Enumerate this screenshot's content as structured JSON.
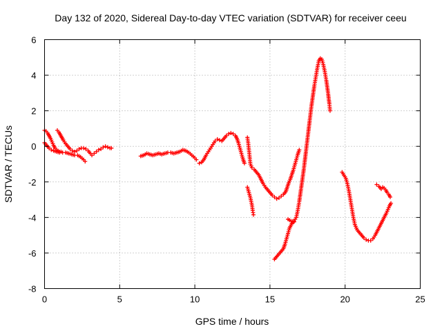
{
  "chart_data": {
    "type": "scatter",
    "title": "Day 132 of 2020, Sidereal Day-to-day VTEC variation (SDTVAR) for receiver ceeu",
    "xlabel": "GPS time / hours",
    "ylabel": "SDTVAR / TECUs",
    "xlim": [
      0,
      25
    ],
    "ylim": [
      -8,
      6
    ],
    "x_ticks": [
      0,
      5,
      10,
      15,
      20,
      25
    ],
    "y_ticks": [
      -8,
      -6,
      -4,
      -2,
      0,
      2,
      4,
      6
    ],
    "grid": true,
    "marker": "plus",
    "color": "#ff0000",
    "series": [
      {
        "points": [
          [
            0.0,
            0.2
          ],
          [
            0.15,
            0.05
          ],
          [
            0.3,
            -0.1
          ],
          [
            0.45,
            -0.2
          ],
          [
            0.6,
            -0.25
          ],
          [
            0.8,
            -0.3
          ],
          [
            1.0,
            -0.35
          ],
          [
            1.2,
            -0.35
          ],
          [
            1.4,
            -0.35
          ],
          [
            1.6,
            -0.4
          ],
          [
            1.8,
            -0.45
          ],
          [
            2.0,
            -0.5
          ],
          [
            2.2,
            -0.5
          ],
          [
            2.4,
            -0.6
          ],
          [
            2.6,
            -0.75
          ],
          [
            2.7,
            -0.85
          ]
        ]
      },
      {
        "points": [
          [
            0.0,
            0.9
          ],
          [
            0.1,
            0.85
          ],
          [
            0.2,
            0.75
          ],
          [
            0.3,
            0.6
          ],
          [
            0.4,
            0.45
          ],
          [
            0.5,
            0.25
          ],
          [
            0.6,
            0.05
          ],
          [
            0.7,
            -0.1
          ],
          [
            0.8,
            -0.2
          ],
          [
            0.9,
            -0.25
          ],
          [
            1.0,
            -0.3
          ],
          [
            1.1,
            -0.3
          ]
        ]
      },
      {
        "points": [
          [
            0.85,
            0.9
          ],
          [
            0.95,
            0.8
          ],
          [
            1.05,
            0.65
          ],
          [
            1.15,
            0.5
          ],
          [
            1.25,
            0.35
          ],
          [
            1.4,
            0.15
          ],
          [
            1.55,
            0.0
          ],
          [
            1.7,
            -0.15
          ],
          [
            1.85,
            -0.25
          ],
          [
            2.0,
            -0.3
          ],
          [
            2.15,
            -0.25
          ],
          [
            2.3,
            -0.15
          ],
          [
            2.45,
            -0.1
          ],
          [
            2.6,
            -0.1
          ],
          [
            2.75,
            -0.15
          ],
          [
            2.9,
            -0.25
          ],
          [
            3.05,
            -0.4
          ],
          [
            3.15,
            -0.5
          ],
          [
            3.3,
            -0.4
          ],
          [
            3.45,
            -0.3
          ],
          [
            3.6,
            -0.2
          ],
          [
            3.75,
            -0.15
          ],
          [
            3.9,
            -0.05
          ],
          [
            4.05,
            0.0
          ],
          [
            4.2,
            -0.05
          ],
          [
            4.35,
            -0.1
          ],
          [
            4.45,
            -0.1
          ]
        ]
      },
      {
        "points": [
          [
            6.4,
            -0.55
          ],
          [
            6.6,
            -0.5
          ],
          [
            6.8,
            -0.4
          ],
          [
            7.0,
            -0.45
          ],
          [
            7.2,
            -0.5
          ],
          [
            7.4,
            -0.45
          ],
          [
            7.6,
            -0.4
          ],
          [
            7.8,
            -0.45
          ],
          [
            8.0,
            -0.4
          ],
          [
            8.2,
            -0.35
          ],
          [
            8.4,
            -0.35
          ],
          [
            8.6,
            -0.4
          ],
          [
            8.8,
            -0.35
          ],
          [
            9.0,
            -0.3
          ],
          [
            9.2,
            -0.2
          ],
          [
            9.4,
            -0.25
          ],
          [
            9.6,
            -0.35
          ],
          [
            9.8,
            -0.5
          ],
          [
            10.0,
            -0.65
          ],
          [
            10.1,
            -0.75
          ]
        ]
      },
      {
        "points": [
          [
            10.3,
            -0.95
          ],
          [
            10.45,
            -0.9
          ],
          [
            10.6,
            -0.75
          ],
          [
            10.75,
            -0.5
          ],
          [
            10.9,
            -0.3
          ],
          [
            11.05,
            -0.1
          ],
          [
            11.2,
            0.1
          ],
          [
            11.35,
            0.3
          ],
          [
            11.5,
            0.4
          ],
          [
            11.65,
            0.35
          ],
          [
            11.8,
            0.3
          ],
          [
            11.95,
            0.45
          ],
          [
            12.1,
            0.6
          ],
          [
            12.25,
            0.7
          ],
          [
            12.4,
            0.75
          ],
          [
            12.55,
            0.7
          ],
          [
            12.7,
            0.6
          ],
          [
            12.8,
            0.45
          ],
          [
            12.9,
            0.2
          ],
          [
            13.0,
            -0.1
          ],
          [
            13.1,
            -0.4
          ],
          [
            13.2,
            -0.7
          ],
          [
            13.3,
            -0.95
          ]
        ]
      },
      {
        "points": [
          [
            13.5,
            0.5
          ],
          [
            13.55,
            0.2
          ],
          [
            13.6,
            -0.2
          ],
          [
            13.65,
            -0.6
          ],
          [
            13.7,
            -1.0
          ],
          [
            13.8,
            -1.2
          ],
          [
            13.95,
            -1.3
          ],
          [
            14.1,
            -1.45
          ],
          [
            14.25,
            -1.6
          ],
          [
            14.4,
            -1.85
          ],
          [
            14.55,
            -2.1
          ],
          [
            14.7,
            -2.3
          ],
          [
            14.85,
            -2.45
          ],
          [
            15.0,
            -2.6
          ],
          [
            15.15,
            -2.75
          ],
          [
            15.3,
            -2.85
          ],
          [
            15.45,
            -2.95
          ],
          [
            15.6,
            -2.9
          ],
          [
            15.75,
            -2.8
          ],
          [
            15.9,
            -2.7
          ],
          [
            16.05,
            -2.55
          ],
          [
            16.15,
            -2.3
          ],
          [
            16.25,
            -2.05
          ],
          [
            16.35,
            -1.85
          ],
          [
            16.45,
            -1.6
          ],
          [
            16.55,
            -1.35
          ],
          [
            16.65,
            -1.05
          ],
          [
            16.75,
            -0.75
          ],
          [
            16.85,
            -0.45
          ],
          [
            16.95,
            -0.2
          ]
        ]
      },
      {
        "points": [
          [
            13.5,
            -2.3
          ],
          [
            13.6,
            -2.6
          ],
          [
            13.7,
            -2.9
          ],
          [
            13.8,
            -3.3
          ],
          [
            13.85,
            -3.6
          ],
          [
            13.9,
            -3.85
          ]
        ]
      },
      {
        "points": [
          [
            15.3,
            -6.35
          ],
          [
            15.45,
            -6.2
          ],
          [
            15.6,
            -6.05
          ],
          [
            15.75,
            -5.9
          ],
          [
            15.9,
            -5.75
          ],
          [
            16.0,
            -5.5
          ],
          [
            16.1,
            -5.2
          ],
          [
            16.2,
            -4.9
          ],
          [
            16.3,
            -4.6
          ],
          [
            16.45,
            -4.35
          ],
          [
            16.6,
            -4.2
          ],
          [
            16.75,
            -4.0
          ],
          [
            16.85,
            -3.6
          ],
          [
            16.95,
            -3.1
          ],
          [
            17.05,
            -2.5
          ],
          [
            17.15,
            -1.9
          ],
          [
            17.25,
            -1.3
          ],
          [
            17.35,
            -0.6
          ],
          [
            17.45,
            0.1
          ],
          [
            17.55,
            0.8
          ],
          [
            17.65,
            1.5
          ],
          [
            17.75,
            2.2
          ],
          [
            17.85,
            2.8
          ],
          [
            17.95,
            3.4
          ],
          [
            18.05,
            3.9
          ],
          [
            18.15,
            4.4
          ],
          [
            18.25,
            4.8
          ],
          [
            18.35,
            4.95
          ],
          [
            18.45,
            4.9
          ],
          [
            18.55,
            4.6
          ],
          [
            18.65,
            4.2
          ],
          [
            18.75,
            3.7
          ],
          [
            18.85,
            3.1
          ],
          [
            18.95,
            2.4
          ],
          [
            19.0,
            2.0
          ]
        ]
      },
      {
        "points": [
          [
            16.2,
            -4.1
          ],
          [
            16.4,
            -4.2
          ],
          [
            16.6,
            -4.25
          ]
        ]
      },
      {
        "points": [
          [
            19.8,
            -1.45
          ],
          [
            20.05,
            -1.8
          ],
          [
            20.15,
            -2.1
          ],
          [
            20.25,
            -2.5
          ],
          [
            20.35,
            -3.0
          ],
          [
            20.45,
            -3.5
          ],
          [
            20.55,
            -4.0
          ],
          [
            20.65,
            -4.4
          ],
          [
            20.8,
            -4.7
          ],
          [
            20.95,
            -4.85
          ],
          [
            21.1,
            -5.0
          ],
          [
            21.25,
            -5.15
          ],
          [
            21.4,
            -5.25
          ],
          [
            21.55,
            -5.3
          ],
          [
            21.7,
            -5.3
          ],
          [
            21.85,
            -5.2
          ],
          [
            22.0,
            -5.0
          ],
          [
            22.15,
            -4.75
          ],
          [
            22.3,
            -4.5
          ],
          [
            22.45,
            -4.25
          ],
          [
            22.6,
            -4.0
          ],
          [
            22.75,
            -3.75
          ],
          [
            22.85,
            -3.55
          ],
          [
            22.95,
            -3.35
          ],
          [
            23.05,
            -3.2
          ]
        ]
      },
      {
        "points": [
          [
            22.1,
            -2.15
          ],
          [
            22.25,
            -2.25
          ],
          [
            22.4,
            -2.4
          ],
          [
            22.5,
            -2.3
          ],
          [
            22.6,
            -2.35
          ],
          [
            22.7,
            -2.45
          ],
          [
            22.8,
            -2.6
          ],
          [
            22.9,
            -2.7
          ],
          [
            23.0,
            -2.85
          ]
        ]
      }
    ]
  }
}
